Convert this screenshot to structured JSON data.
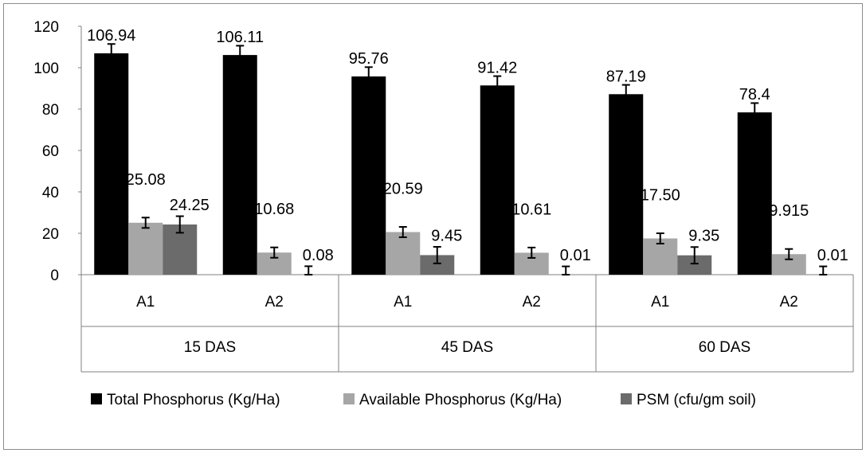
{
  "chart_data": {
    "type": "bar",
    "title": "",
    "xlabel": "",
    "ylabel": "",
    "ylim": [
      0,
      120
    ],
    "yticks": [
      0,
      20,
      40,
      60,
      80,
      100,
      120
    ],
    "grid": false,
    "legend_position": "bottom",
    "groups": [
      "15 DAS",
      "45 DAS",
      "60 DAS"
    ],
    "categories": [
      "A1",
      "A2",
      "A1",
      "A2",
      "A1",
      "A2"
    ],
    "series": [
      {
        "name": "Total Phosphorus (Kg/Ha)",
        "color": "#000000",
        "values": [
          106.94,
          106.11,
          95.76,
          91.42,
          87.19,
          78.4
        ],
        "labels": [
          "106.94",
          "106.11",
          "95.76",
          "91.42",
          "87.19",
          "78.4"
        ],
        "error": [
          4.5,
          4.5,
          4.5,
          4.5,
          4.5,
          4.5
        ]
      },
      {
        "name": "Available Phosphorus (Kg/Ha)",
        "color": "#a6a6a6",
        "values": [
          25.08,
          10.68,
          20.59,
          10.61,
          17.5,
          9.915
        ],
        "labels": [
          "25.08",
          "10.68",
          "20.59",
          "10.61",
          "17.50",
          "9.915"
        ],
        "error": [
          2.5,
          2.5,
          2.5,
          2.5,
          2.5,
          2.5
        ]
      },
      {
        "name": "PSM (cfu/gm soil)",
        "color": "#6b6b6b",
        "values": [
          24.25,
          0.08,
          9.45,
          0.01,
          9.35,
          0.01
        ],
        "labels": [
          "24.25",
          "0.08",
          "9.45",
          "0.01",
          "9.35",
          "0.01"
        ],
        "error": [
          4.0,
          4.0,
          4.0,
          4.0,
          4.0,
          4.0
        ]
      }
    ]
  }
}
